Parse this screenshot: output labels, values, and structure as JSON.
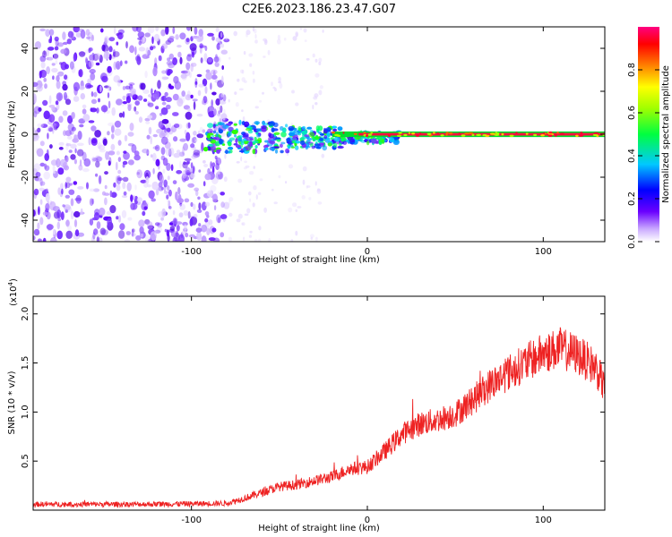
{
  "figure_title": "C2E6.2023.186.23.47.G07",
  "chart_data": [
    {
      "type": "heatmap",
      "xlabel": "Height of straight line (km)",
      "ylabel": "Frequency (Hz)",
      "xlim": [
        -190,
        135
      ],
      "ylim": [
        -50,
        50
      ],
      "x_ticks": [
        -100,
        0,
        100
      ],
      "y_ticks": [
        -40,
        -20,
        0,
        20,
        40
      ],
      "x_tick_labels": [
        "-100",
        "0",
        "100"
      ],
      "y_tick_labels": [
        "-40",
        "-20",
        "0",
        "20",
        "40"
      ],
      "grid": false,
      "colorbar": {
        "label": "Normalized spectral amplitude",
        "range": [
          0,
          1
        ],
        "ticks": [
          0.0,
          0.2,
          0.4,
          0.6,
          0.8
        ],
        "tick_labels": [
          "0.0",
          "0.2",
          "0.4",
          "0.6",
          "0.8"
        ],
        "colormap": "rainbow",
        "colors": [
          "#ffffff",
          "#5a00ff",
          "#0000ff",
          "#00ffff",
          "#00ff00",
          "#ffff00",
          "#ff8000",
          "#ff0000",
          "#ff0080"
        ]
      },
      "description_regions": [
        {
          "x_range": [
            -190,
            -80
          ],
          "freq_range": [
            -50,
            50
          ],
          "amplitude_range": [
            0.0,
            0.15
          ]
        },
        {
          "x_range": [
            -90,
            15
          ],
          "freq_range": [
            -10,
            8
          ],
          "amplitude_range": [
            0.2,
            0.6
          ]
        },
        {
          "x_range": [
            -20,
            135
          ],
          "freq_range": [
            -1,
            1
          ],
          "amplitude_range": [
            0.7,
            1.0
          ]
        }
      ]
    },
    {
      "type": "line",
      "xlabel": "Height of straight line (km)",
      "ylabel": "SNR (10 * v/v)",
      "y_scale_note": "(x10",
      "y_scale_exp": "4",
      "xlim": [
        -190,
        135
      ],
      "ylim": [
        0,
        21800
      ],
      "x_ticks": [
        -100,
        0,
        100
      ],
      "x_tick_labels": [
        "-100",
        "0",
        "100"
      ],
      "y_ticks": [
        5000,
        10000,
        15000,
        20000
      ],
      "y_tick_labels": [
        "0.5",
        "1.0",
        "1.5",
        "2.0"
      ],
      "grid": false,
      "line_color": "#ee2222",
      "series": [
        {
          "x": [
            -190,
            -160,
            -130,
            -100,
            -80,
            -70,
            -60,
            -50,
            -40,
            -30,
            -20,
            -10,
            0,
            10,
            20,
            30,
            40,
            50,
            60,
            70,
            80,
            90,
            100,
            110,
            120,
            130,
            135
          ],
          "values": [
            600,
            600,
            600,
            650,
            700,
            1200,
            1800,
            2400,
            2600,
            3000,
            3400,
            4200,
            4400,
            6000,
            7800,
            8800,
            9200,
            9800,
            11200,
            12800,
            14000,
            15000,
            16000,
            16500,
            15800,
            14500,
            12400
          ]
        }
      ]
    }
  ]
}
